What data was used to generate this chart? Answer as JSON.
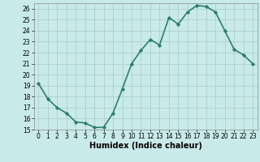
{
  "x": [
    0,
    1,
    2,
    3,
    4,
    5,
    6,
    7,
    8,
    9,
    10,
    11,
    12,
    13,
    14,
    15,
    16,
    17,
    18,
    19,
    20,
    21,
    22,
    23
  ],
  "y": [
    19.2,
    17.8,
    17.0,
    16.5,
    15.7,
    15.6,
    15.2,
    15.2,
    16.5,
    18.7,
    21.0,
    22.2,
    23.2,
    22.7,
    25.2,
    24.6,
    25.7,
    26.3,
    26.2,
    25.7,
    24.0,
    22.3,
    21.8,
    21.0
  ],
  "line_color": "#2d7d6e",
  "marker": "D",
  "marker_size": 2.2,
  "bg_color": "#c8eae8",
  "grid_color": "#aecfcb",
  "ylim": [
    15,
    26.5
  ],
  "xlim": [
    -0.5,
    23.5
  ],
  "yticks": [
    15,
    16,
    17,
    18,
    19,
    20,
    21,
    22,
    23,
    24,
    25,
    26
  ],
  "xticks": [
    0,
    1,
    2,
    3,
    4,
    5,
    6,
    7,
    8,
    9,
    10,
    11,
    12,
    13,
    14,
    15,
    16,
    17,
    18,
    19,
    20,
    21,
    22,
    23
  ],
  "xlabel": "Humidex (Indice chaleur)",
  "xlabel_fontsize": 7,
  "tick_fontsize": 5.5,
  "linewidth": 1.2
}
